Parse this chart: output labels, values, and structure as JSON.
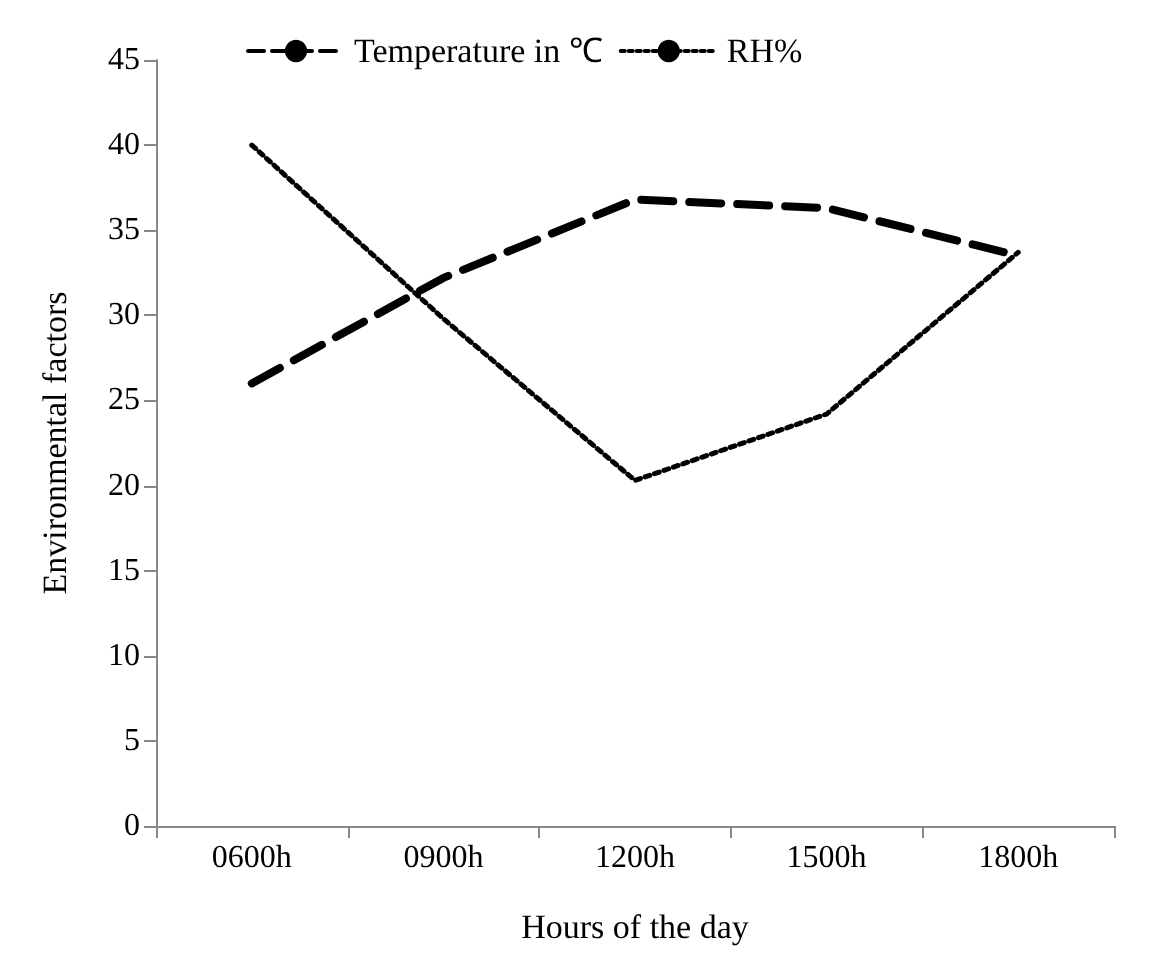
{
  "chart_data": {
    "type": "line",
    "xlabel": "Hours of the day",
    "ylabel": "Environmental factors",
    "categories": [
      "0600h",
      "0900h",
      "1200h",
      "1500h",
      "1800h"
    ],
    "series": [
      {
        "name": "Temperature in ℃",
        "color": "#000000",
        "line_style": "dashed",
        "values": [
          26.0,
          32.2,
          36.8,
          36.3,
          33.5
        ]
      },
      {
        "name": "RH%",
        "color": "#000000",
        "line_style": "dotted",
        "values": [
          40.0,
          29.8,
          20.3,
          24.2,
          33.7
        ]
      }
    ],
    "ylim": [
      0,
      45
    ],
    "yticks": [
      0,
      5,
      10,
      15,
      20,
      25,
      30,
      35,
      40,
      45
    ],
    "grid": false,
    "legend": "top"
  }
}
